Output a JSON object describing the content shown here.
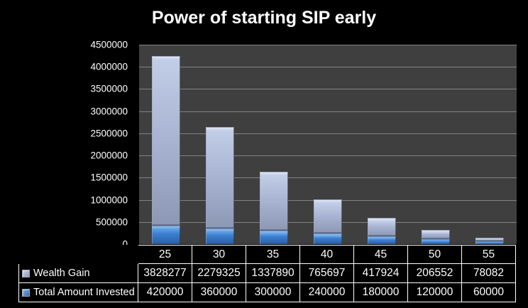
{
  "title": "Power of starting SIP early",
  "chart_data": {
    "type": "bar",
    "stacked": true,
    "title": "Power of starting SIP early",
    "categories": [
      "25",
      "30",
      "35",
      "40",
      "45",
      "50",
      "55"
    ],
    "series": [
      {
        "name": "Total Amount Invested",
        "values": [
          420000,
          360000,
          300000,
          240000,
          180000,
          120000,
          60000
        ],
        "colors": {
          "bevel": "#9cc8f2",
          "light": "#5c9de4",
          "mid": "#3b7ecf",
          "dark": "#2a5ea4"
        },
        "key_light": "#7fb4e8",
        "key_dark": "#2e6db8"
      },
      {
        "name": "Wealth Gain",
        "values": [
          3828277,
          2279325,
          1337890,
          765697,
          417924,
          206552,
          78082
        ],
        "colors": {
          "bevel": "#e4edfa",
          "light": "#c2cde7",
          "mid": "#aab6d3",
          "dark": "#8c98b4"
        },
        "key_light": "#c9d4ea",
        "key_dark": "#8d99b4"
      }
    ],
    "stack_order": "bottom-to-top",
    "table_row_order": [
      "Wealth Gain",
      "Total Amount Invested"
    ],
    "ylim": [
      0,
      4500000
    ],
    "ytick_step": 500000,
    "ytick_labels": [
      "4500000",
      "4000000",
      "3500000",
      "3000000",
      "2500000",
      "2000000",
      "1500000",
      "1000000",
      "500000",
      "0"
    ],
    "grid": true,
    "legend_position": "data-table-left"
  },
  "colors": {
    "background": "#000000",
    "plot_background": "#3f3f3f",
    "gridline": "#8f8f8f",
    "text": "#ffffff",
    "table_border": "#ffffff"
  }
}
